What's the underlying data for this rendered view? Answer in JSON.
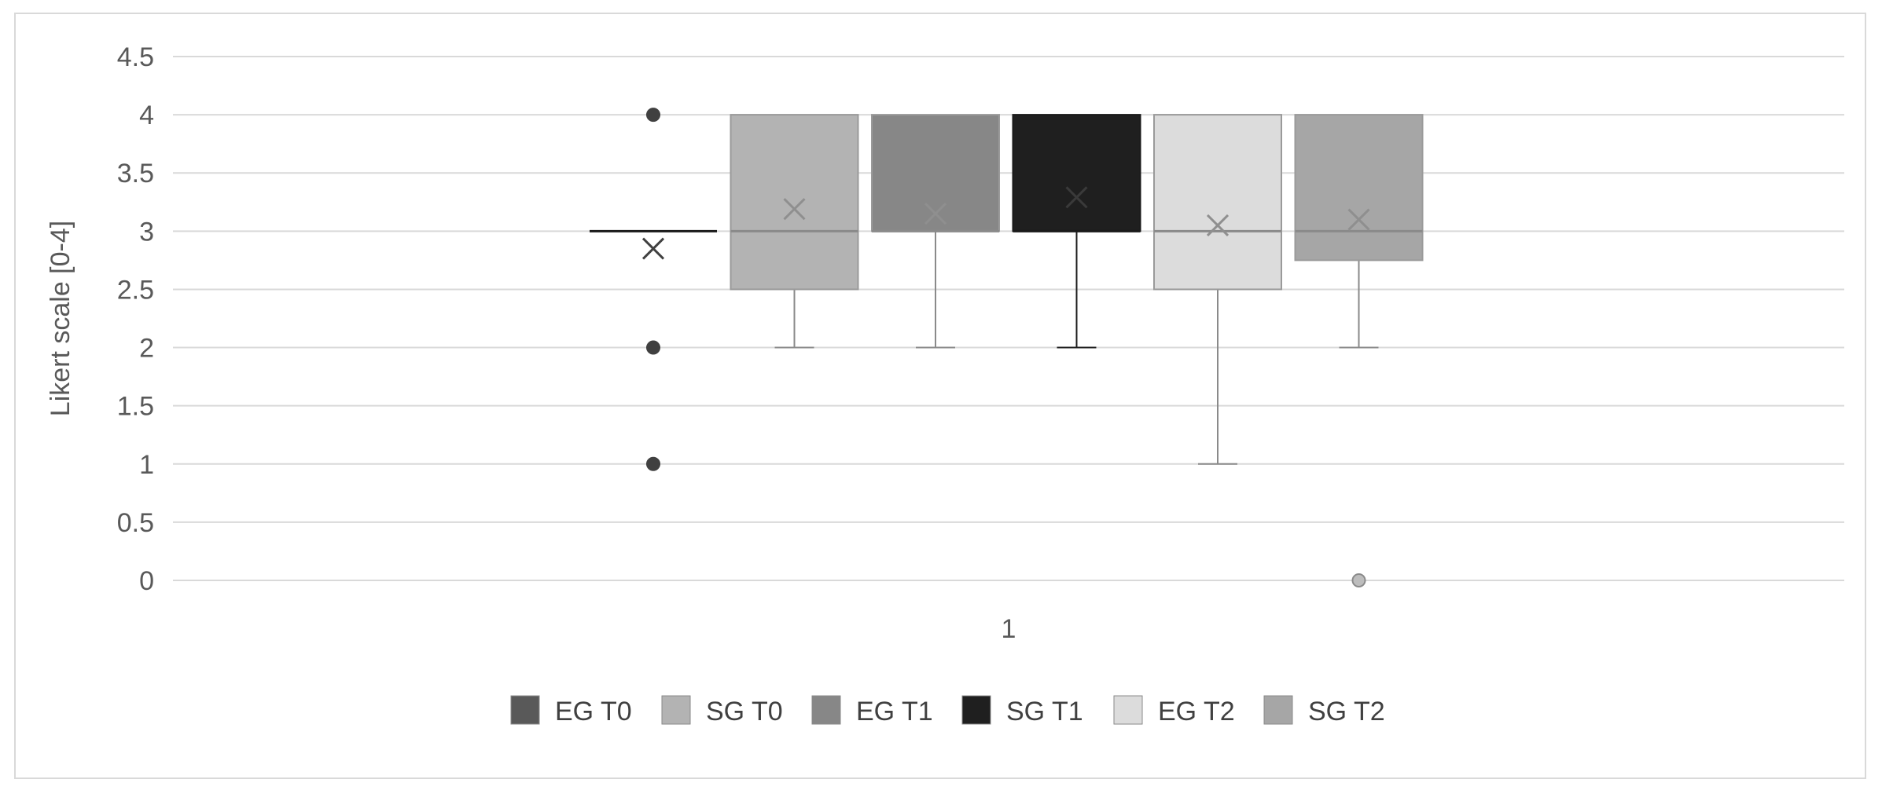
{
  "chart_data": {
    "type": "box",
    "title": "",
    "xlabel": "",
    "ylabel": "Likert scale [0-4]",
    "categories": [
      "1"
    ],
    "ylim": [
      0,
      4.5
    ],
    "yticks": [
      "0",
      "0.5",
      "1",
      "1.5",
      "2",
      "2.5",
      "3",
      "3.5",
      "4",
      "4.5"
    ],
    "grid": true,
    "legend_position": "bottom",
    "series": [
      {
        "name": "EG T0",
        "color": "#595959",
        "min": 3,
        "q1": 3,
        "median": 3,
        "q3": 3,
        "max": 3,
        "mean": 2.85,
        "outliers": [
          4,
          2,
          1
        ]
      },
      {
        "name": "SG T0",
        "color": "#b3b3b3",
        "min": 2,
        "q1": 2.5,
        "median": 3,
        "q3": 4,
        "max": 4,
        "mean": 3.19,
        "outliers": []
      },
      {
        "name": "EG T1",
        "color": "#878787",
        "min": 2,
        "q1": 3,
        "median": 3,
        "q3": 4,
        "max": 4,
        "mean": 3.15,
        "outliers": []
      },
      {
        "name": "SG T1",
        "color": "#1f1f1f",
        "min": 2,
        "q1": 3,
        "median": 3,
        "q3": 4,
        "max": 4,
        "mean": 3.29,
        "outliers": []
      },
      {
        "name": "EG T2",
        "color": "#dcdcdc",
        "min": 1,
        "q1": 2.5,
        "median": 3,
        "q3": 4,
        "max": 4,
        "mean": 3.05,
        "outliers": []
      },
      {
        "name": "SG T2",
        "color": "#a6a6a6",
        "min": 2,
        "q1": 2.75,
        "median": 3,
        "q3": 4,
        "max": 4,
        "mean": 3.1,
        "outliers": [
          0
        ]
      }
    ]
  }
}
